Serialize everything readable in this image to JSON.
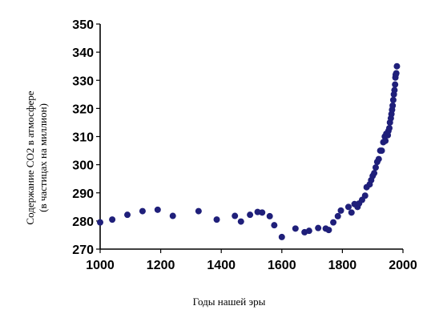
{
  "chart_data": {
    "type": "scatter",
    "xlabel": "Годы нашей эры",
    "ylabel_line1": "Содержание CO2 в атмосфере",
    "ylabel_line2": "(в частицах на миллион)",
    "xlim": [
      1000,
      2000
    ],
    "ylim": [
      270,
      350
    ],
    "xticks": [
      "1000",
      "1200",
      "1400",
      "1600",
      "1800",
      "2000"
    ],
    "yticks": [
      "270",
      "280",
      "290",
      "300",
      "310",
      "320",
      "330",
      "340",
      "350"
    ],
    "grid": false,
    "marker_color": "#1f1f7a",
    "series": [
      {
        "points": [
          [
            1000,
            279.5
          ],
          [
            1040,
            280.5
          ],
          [
            1090,
            282.2
          ],
          [
            1140,
            283.5
          ],
          [
            1190,
            284
          ],
          [
            1240,
            281.8
          ],
          [
            1325,
            283.5
          ],
          [
            1385,
            280.5
          ],
          [
            1445,
            281.8
          ],
          [
            1465,
            279.8
          ],
          [
            1495,
            282.2
          ],
          [
            1520,
            283.2
          ],
          [
            1535,
            283
          ],
          [
            1560,
            281.7
          ],
          [
            1575,
            278.5
          ],
          [
            1600,
            274.3
          ],
          [
            1645,
            277.3
          ],
          [
            1675,
            276
          ],
          [
            1690,
            276.5
          ],
          [
            1720,
            277.5
          ],
          [
            1745,
            277.3
          ],
          [
            1755,
            276.8
          ],
          [
            1770,
            279.5
          ],
          [
            1785,
            281.7
          ],
          [
            1795,
            283.7
          ],
          [
            1820,
            285
          ],
          [
            1830,
            283
          ],
          [
            1840,
            286
          ],
          [
            1850,
            285
          ],
          [
            1855,
            286.2
          ],
          [
            1865,
            287.5
          ],
          [
            1875,
            289
          ],
          [
            1880,
            292
          ],
          [
            1890,
            293
          ],
          [
            1895,
            294.5
          ],
          [
            1900,
            296
          ],
          [
            1905,
            297
          ],
          [
            1910,
            299
          ],
          [
            1915,
            301
          ],
          [
            1920,
            302
          ],
          [
            1925,
            305
          ],
          [
            1930,
            305
          ],
          [
            1935,
            308
          ],
          [
            1940,
            310
          ],
          [
            1942,
            308.5
          ],
          [
            1945,
            311
          ],
          [
            1950,
            310.5
          ],
          [
            1952,
            312
          ],
          [
            1955,
            313
          ],
          [
            1957,
            315
          ],
          [
            1960,
            316.5
          ],
          [
            1962,
            318
          ],
          [
            1964,
            319.5
          ],
          [
            1966,
            321
          ],
          [
            1968,
            323
          ],
          [
            1970,
            325
          ],
          [
            1972,
            326.5
          ],
          [
            1974,
            328.5
          ],
          [
            1975,
            331
          ],
          [
            1976,
            332
          ],
          [
            1978,
            332.5
          ],
          [
            1980,
            335
          ]
        ]
      }
    ]
  }
}
